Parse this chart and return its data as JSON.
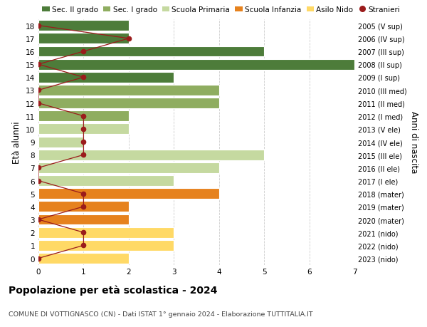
{
  "ages": [
    0,
    1,
    2,
    3,
    4,
    5,
    6,
    7,
    8,
    9,
    10,
    11,
    12,
    13,
    14,
    15,
    16,
    17,
    18
  ],
  "right_labels": [
    "2023 (nido)",
    "2022 (nido)",
    "2021 (nido)",
    "2020 (mater)",
    "2019 (mater)",
    "2018 (mater)",
    "2017 (I ele)",
    "2016 (II ele)",
    "2015 (III ele)",
    "2014 (IV ele)",
    "2013 (V ele)",
    "2012 (I med)",
    "2011 (II med)",
    "2010 (III med)",
    "2009 (I sup)",
    "2008 (II sup)",
    "2007 (III sup)",
    "2006 (IV sup)",
    "2005 (V sup)"
  ],
  "bar_values": [
    2,
    3,
    3,
    2,
    2,
    4,
    3,
    4,
    5,
    1,
    2,
    2,
    4,
    4,
    3,
    7,
    5,
    2,
    2
  ],
  "stranieri_values": [
    0,
    1,
    1,
    0,
    1,
    1,
    0,
    0,
    1,
    1,
    1,
    1,
    0,
    0,
    1,
    0,
    1,
    2,
    0
  ],
  "bar_colors": [
    "#ffd966",
    "#ffd966",
    "#ffd966",
    "#e6821e",
    "#e6821e",
    "#e6821e",
    "#c5d9a0",
    "#c5d9a0",
    "#c5d9a0",
    "#c5d9a0",
    "#c5d9a0",
    "#8fad60",
    "#8fad60",
    "#8fad60",
    "#4d7c3a",
    "#4d7c3a",
    "#4d7c3a",
    "#4d7c3a",
    "#4d7c3a"
  ],
  "legend_labels": [
    "Sec. II grado",
    "Sec. I grado",
    "Scuola Primaria",
    "Scuola Infanzia",
    "Asilo Nido",
    "Stranieri"
  ],
  "legend_colors": [
    "#4d7c3a",
    "#8fad60",
    "#c5d9a0",
    "#e6821e",
    "#ffd966",
    "#9b1c1c"
  ],
  "ylabel_left": "Età alunni",
  "ylabel_right": "Anni di nascita",
  "title": "Popolazione per età scolastica - 2024",
  "subtitle": "COMUNE DI VOTTIGNASCO (CN) - Dati ISTAT 1° gennaio 2024 - Elaborazione TUTTITALIA.IT",
  "xlim": [
    0,
    7
  ],
  "background_color": "#ffffff",
  "stranieri_color": "#9b1c1c",
  "grid_color": "#cccccc"
}
